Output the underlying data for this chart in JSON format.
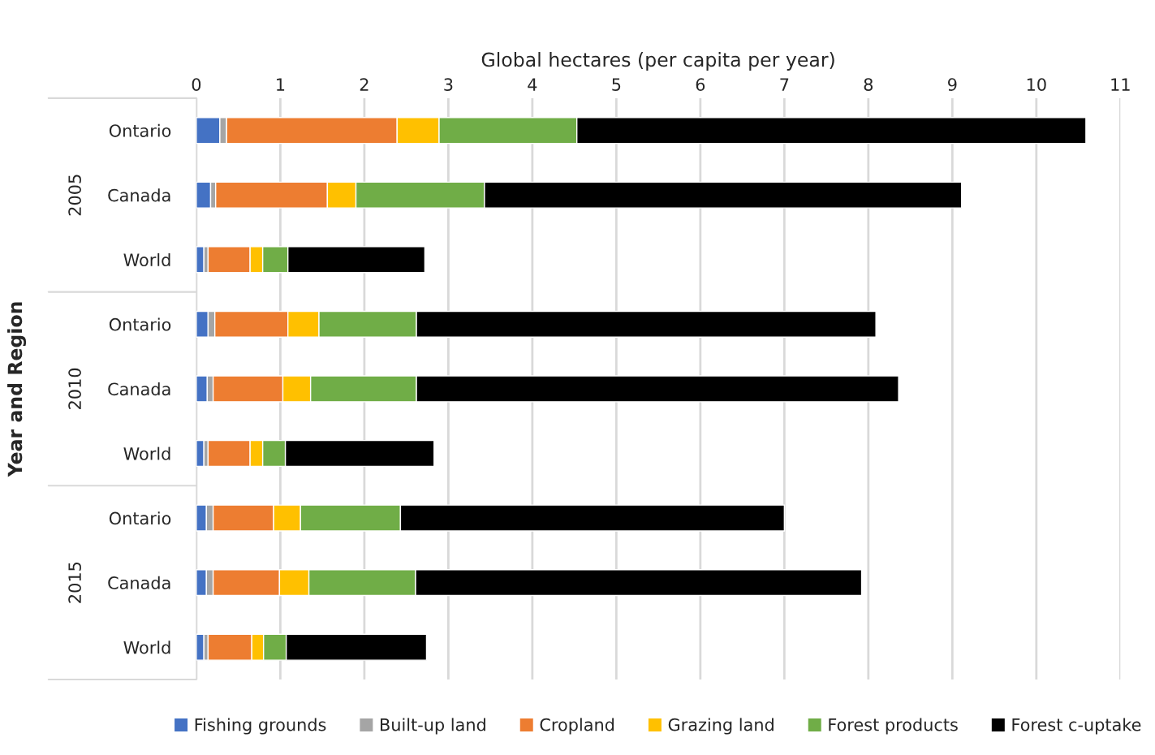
{
  "chart_data": {
    "type": "bar",
    "orientation": "horizontal",
    "stacked": true,
    "xlabel": "Global hectares (per capita per year)",
    "ylabel": "Year and Region",
    "categories": [
      "Ontario",
      "Canada",
      "World",
      "Ontario",
      "Canada",
      "World",
      "Ontario",
      "Canada",
      "World"
    ],
    "annotations": [
      "2005",
      "2010",
      "2015"
    ],
    "series": [
      {
        "name": "Fishing grounds",
        "color": "#4472c4",
        "values": [
          0.28,
          0.17,
          0.09,
          0.14,
          0.13,
          0.09,
          0.12,
          0.12,
          0.09
        ]
      },
      {
        "name": "Built-up land",
        "color": "#a5a5a5",
        "values": [
          0.08,
          0.06,
          0.05,
          0.08,
          0.07,
          0.05,
          0.08,
          0.08,
          0.05
        ]
      },
      {
        "name": "Cropland",
        "color": "#ed7d31",
        "values": [
          2.03,
          1.33,
          0.5,
          0.87,
          0.83,
          0.5,
          0.72,
          0.79,
          0.52
        ]
      },
      {
        "name": "Grazing land",
        "color": "#ffc000",
        "values": [
          0.5,
          0.34,
          0.15,
          0.37,
          0.33,
          0.15,
          0.32,
          0.35,
          0.14
        ]
      },
      {
        "name": "Forest products",
        "color": "#70ad47",
        "values": [
          1.64,
          1.53,
          0.3,
          1.16,
          1.26,
          0.27,
          1.19,
          1.27,
          0.27
        ]
      },
      {
        "name": "Forest c-uptake",
        "color": "#000000",
        "values": [
          6.06,
          5.68,
          1.63,
          5.47,
          5.74,
          1.77,
          4.57,
          5.31,
          1.67
        ]
      }
    ],
    "xlim": [
      0,
      11
    ],
    "xticks": [
      0,
      1,
      2,
      3,
      4,
      5,
      6,
      7,
      8,
      9,
      10,
      11
    ],
    "grid": "x",
    "legend": "bottom"
  }
}
